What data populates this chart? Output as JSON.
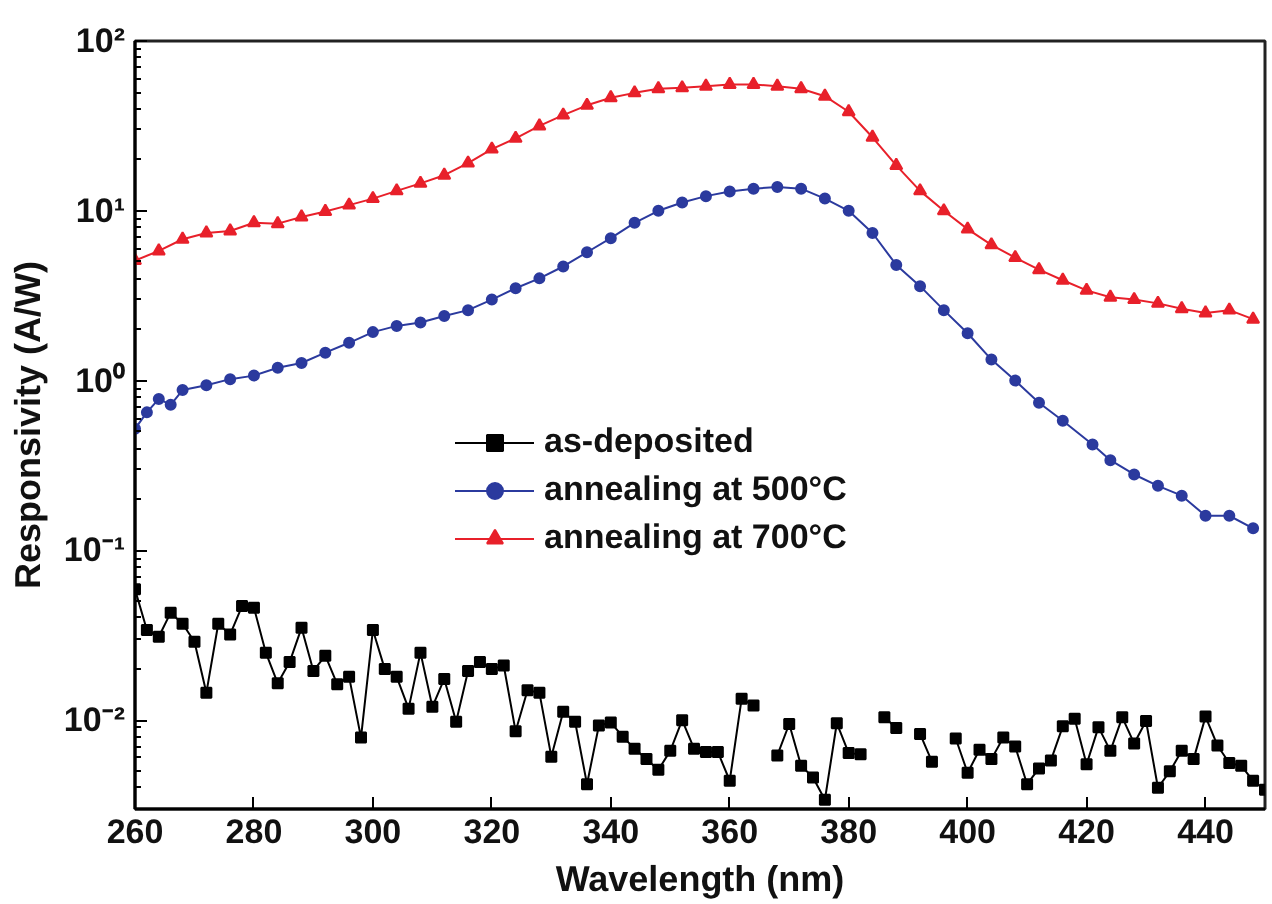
{
  "chart_data": {
    "type": "line",
    "xlabel": "Wavelength (nm)",
    "ylabel": "Responsivity (A/W)",
    "log": "y",
    "xlim": [
      260,
      450
    ],
    "xticks": [
      260,
      280,
      300,
      320,
      340,
      360,
      380,
      400,
      420,
      440
    ],
    "ylim": [
      0.003,
      100
    ],
    "yticks": [
      {
        "value": 0.01,
        "label": "10⁻²"
      },
      {
        "value": 0.1,
        "label": "10⁻¹"
      },
      {
        "value": 1,
        "label": "10⁰"
      },
      {
        "value": 10,
        "label": "10¹"
      },
      {
        "value": 100,
        "label": "10²"
      }
    ],
    "legend": "center",
    "grid": false,
    "line_style": "solid",
    "series": [
      {
        "name": "as-deposited",
        "color": "#000000",
        "marker": "square",
        "x": [
          260,
          262,
          264,
          266,
          268,
          270,
          272,
          274,
          276,
          278,
          280,
          282,
          284,
          286,
          288,
          290,
          292,
          294,
          296,
          298,
          300,
          302,
          304,
          306,
          308,
          310,
          312,
          314,
          316,
          318,
          320,
          322,
          324,
          326,
          328,
          330,
          332,
          334,
          336,
          338,
          340,
          342,
          344,
          346,
          348,
          350,
          352,
          354,
          356,
          358,
          360,
          362,
          364,
          366,
          368,
          370,
          372,
          374,
          376,
          378,
          380,
          382,
          384,
          386,
          388,
          390,
          392,
          394,
          396,
          398,
          400,
          402,
          404,
          406,
          408,
          410,
          412,
          414,
          416,
          418,
          420,
          422,
          424,
          426,
          428,
          430,
          432,
          434,
          436,
          438,
          440,
          442,
          444,
          446,
          448,
          450
        ],
        "values": [
          0.059,
          0.034,
          0.031,
          0.043,
          0.037,
          0.029,
          0.0145,
          0.037,
          0.032,
          0.047,
          0.046,
          0.025,
          0.0165,
          0.022,
          0.035,
          0.0195,
          0.024,
          0.0163,
          0.018,
          0.0079,
          0.034,
          0.02,
          0.018,
          0.0117,
          0.025,
          0.012,
          0.0175,
          0.0098,
          0.0195,
          0.022,
          0.02,
          0.021,
          0.0086,
          0.015,
          0.0145,
          0.0061,
          0.0112,
          0.0098,
          0.0042,
          0.0093,
          0.0097,
          0.008,
          0.0068,
          0.0059,
          0.0051,
          0.0066,
          0.01,
          0.0068,
          0.0065,
          0.0065,
          0.0044,
          0.0134,
          0.0122,
          null,
          0.0062,
          0.0095,
          0.0054,
          0.0046,
          0.0034,
          0.0096,
          0.0064,
          0.0063,
          null,
          0.0104,
          0.009,
          null,
          0.0083,
          0.0057,
          null,
          0.0078,
          0.0049,
          0.0067,
          0.0059,
          0.0079,
          0.007,
          0.0042,
          0.0052,
          0.0058,
          0.0092,
          0.0102,
          0.0055,
          0.0091,
          0.0066,
          0.0104,
          0.0073,
          0.0099,
          0.004,
          0.005,
          0.0066,
          0.0059,
          0.0105,
          0.0071,
          0.0056,
          0.0054,
          0.0044,
          0.0039
        ]
      },
      {
        "name": "annealing at 500°C",
        "color": "#2b3a9e",
        "marker": "circle",
        "x": [
          260,
          262,
          264,
          266,
          268,
          272,
          276,
          280,
          284,
          288,
          292,
          296,
          300,
          304,
          308,
          312,
          316,
          320,
          324,
          328,
          332,
          336,
          340,
          344,
          348,
          352,
          356,
          360,
          364,
          368,
          372,
          376,
          380,
          384,
          388,
          392,
          396,
          400,
          404,
          408,
          412,
          416,
          421,
          424,
          428,
          432,
          436,
          440,
          444,
          448
        ],
        "values": [
          0.52,
          0.65,
          0.78,
          0.72,
          0.88,
          0.94,
          1.02,
          1.07,
          1.19,
          1.27,
          1.46,
          1.67,
          1.93,
          2.1,
          2.2,
          2.4,
          2.6,
          3.0,
          3.5,
          4.0,
          4.7,
          5.7,
          6.9,
          8.5,
          10,
          11.2,
          12.2,
          13.0,
          13.5,
          13.8,
          13.5,
          11.8,
          10,
          7.4,
          4.8,
          3.6,
          2.6,
          1.9,
          1.33,
          1.0,
          0.74,
          0.58,
          0.42,
          0.34,
          0.28,
          0.24,
          0.21,
          0.16,
          0.16,
          0.135
        ]
      },
      {
        "name": "annealing at 700°C",
        "color": "#e8202a",
        "marker": "triangle",
        "x": [
          260,
          264,
          268,
          272,
          276,
          280,
          284,
          288,
          292,
          296,
          300,
          304,
          308,
          312,
          316,
          320,
          324,
          328,
          332,
          336,
          340,
          344,
          348,
          352,
          356,
          360,
          364,
          368,
          372,
          376,
          380,
          384,
          388,
          392,
          396,
          400,
          404,
          408,
          412,
          416,
          420,
          424,
          428,
          432,
          436,
          440,
          444,
          448
        ],
        "values": [
          5.1,
          5.8,
          6.8,
          7.4,
          7.6,
          8.5,
          8.4,
          9.2,
          9.9,
          10.8,
          11.8,
          13.1,
          14.5,
          16.2,
          19.1,
          23.1,
          26.7,
          31.6,
          36.6,
          41.8,
          46.3,
          49.5,
          52.3,
          53,
          54.2,
          55.5,
          55.5,
          54.2,
          52.3,
          47.3,
          38.3,
          27.1,
          18.5,
          13.1,
          10,
          7.8,
          6.3,
          5.3,
          4.5,
          3.9,
          3.4,
          3.1,
          3.0,
          2.85,
          2.65,
          2.5,
          2.6,
          2.3
        ]
      }
    ]
  }
}
